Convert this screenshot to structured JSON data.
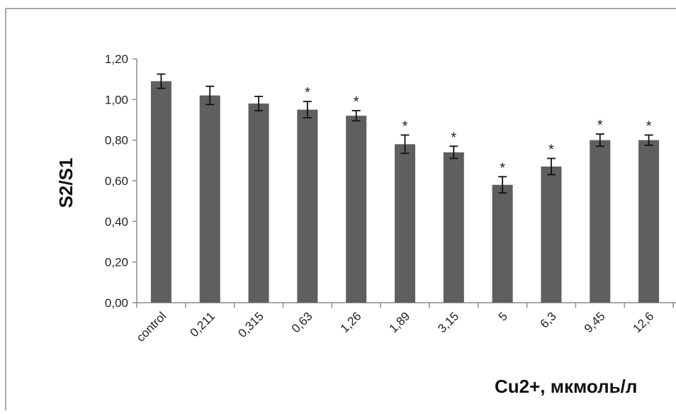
{
  "chart_data": {
    "type": "bar",
    "title": "",
    "ylabel": "S2/S1",
    "xlabel": "Cu2+, мкмоль/л",
    "categories": [
      "control",
      "0,211",
      "0,315",
      "0,63",
      "1,26",
      "1,89",
      "3,15",
      "5",
      "6,3",
      "9,45",
      "12,6"
    ],
    "values": [
      1.09,
      1.02,
      0.98,
      0.95,
      0.92,
      0.78,
      0.74,
      0.58,
      0.67,
      0.8,
      0.8
    ],
    "errors": [
      0.035,
      0.045,
      0.035,
      0.04,
      0.025,
      0.045,
      0.03,
      0.04,
      0.04,
      0.03,
      0.025
    ],
    "significance": [
      "",
      "",
      "",
      "*",
      "*",
      "*",
      "*",
      "*",
      "*",
      "*",
      "*"
    ],
    "ylim": [
      0,
      1.2
    ],
    "yticks": [
      "0,00",
      "0,20",
      "0,40",
      "0,60",
      "0,80",
      "1,00",
      "1,20"
    ],
    "grid": false,
    "bar_color": "#5f5f5f",
    "legend": null
  }
}
